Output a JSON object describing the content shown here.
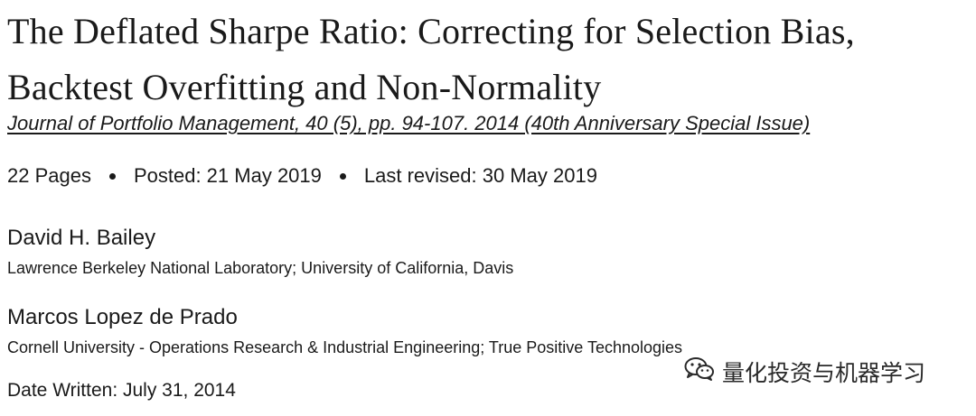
{
  "paper": {
    "title": "The Deflated Sharpe Ratio: Correcting for Selection Bias, Backtest Overfitting and Non-Normality",
    "journal_citation": "Journal of Portfolio Management, 40 (5), pp. 94-107. 2014 (40th Anniversary Special Issue)",
    "pages": "22 Pages",
    "posted": "Posted: 21 May 2019",
    "last_revised": "Last revised: 30 May 2019",
    "authors": [
      {
        "name": "David H. Bailey",
        "affiliation": "Lawrence Berkeley National Laboratory; University of California, Davis"
      },
      {
        "name": "Marcos Lopez de Prado",
        "affiliation": "Cornell University - Operations Research & Industrial Engineering; True Positive Technologies"
      }
    ],
    "date_written": "Date Written: July 31, 2014"
  },
  "watermark": {
    "icon": "wechat-icon",
    "text": "量化投资与机器学习"
  }
}
